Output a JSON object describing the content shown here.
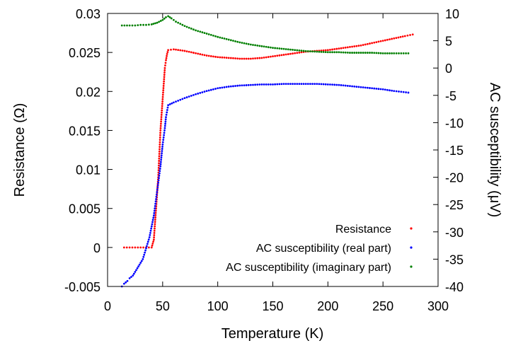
{
  "chart_data": {
    "type": "scatter",
    "xlabel": "Temperature (K)",
    "ylabel": "Resistance (Ω)",
    "y2label": "AC susceptibility (μV)",
    "xlim": [
      0,
      300
    ],
    "ylim": [
      -0.005,
      0.03
    ],
    "y2lim": [
      -40,
      10
    ],
    "xticks": [
      "0",
      "50",
      "100",
      "150",
      "200",
      "250",
      "300"
    ],
    "yticks": [
      "-0.005",
      "0",
      "0.005",
      "0.01",
      "0.015",
      "0.02",
      "0.025",
      "0.03"
    ],
    "y2ticks": [
      "-40",
      "-35",
      "-30",
      "-25",
      "-20",
      "-15",
      "-10",
      "-5",
      "0",
      "5",
      "10"
    ],
    "grid": false,
    "legend_position": "bottom-right",
    "series": [
      {
        "name": "Resistance",
        "axis": "left",
        "color": "#ff0000",
        "points": [
          [
            15,
            0
          ],
          [
            20,
            0
          ],
          [
            25,
            0
          ],
          [
            30,
            0
          ],
          [
            35,
            0
          ],
          [
            40,
            0
          ],
          [
            42,
            0.001
          ],
          [
            43,
            0.003
          ],
          [
            44,
            0.005
          ],
          [
            45,
            0.007
          ],
          [
            46,
            0.009
          ],
          [
            47,
            0.012
          ],
          [
            48,
            0.015
          ],
          [
            49,
            0.017
          ],
          [
            50,
            0.019
          ],
          [
            51,
            0.021
          ],
          [
            52,
            0.023
          ],
          [
            53,
            0.024
          ],
          [
            54,
            0.0248
          ],
          [
            55,
            0.0253
          ],
          [
            60,
            0.0254
          ],
          [
            70,
            0.0252
          ],
          [
            80,
            0.0249
          ],
          [
            90,
            0.0246
          ],
          [
            100,
            0.0244
          ],
          [
            110,
            0.0243
          ],
          [
            120,
            0.0242
          ],
          [
            130,
            0.0242
          ],
          [
            140,
            0.0243
          ],
          [
            150,
            0.0245
          ],
          [
            160,
            0.0247
          ],
          [
            170,
            0.0249
          ],
          [
            180,
            0.0251
          ],
          [
            190,
            0.0252
          ],
          [
            200,
            0.0253
          ],
          [
            210,
            0.0255
          ],
          [
            220,
            0.0257
          ],
          [
            230,
            0.0259
          ],
          [
            240,
            0.0262
          ],
          [
            250,
            0.0265
          ],
          [
            260,
            0.0268
          ],
          [
            270,
            0.0271
          ],
          [
            277,
            0.0273
          ]
        ]
      },
      {
        "name": "AC susceptibility (real part)",
        "axis": "right",
        "color": "#0000ff",
        "points": [
          [
            13,
            -40
          ],
          [
            15,
            -39.5
          ],
          [
            18,
            -39
          ],
          [
            20,
            -38.5
          ],
          [
            23,
            -38
          ],
          [
            26,
            -37
          ],
          [
            29,
            -36
          ],
          [
            32,
            -35
          ],
          [
            35,
            -33
          ],
          [
            38,
            -31
          ],
          [
            40,
            -29
          ],
          [
            42,
            -27
          ],
          [
            44,
            -24
          ],
          [
            46,
            -21
          ],
          [
            48,
            -18
          ],
          [
            50,
            -14
          ],
          [
            52,
            -11
          ],
          [
            53,
            -9
          ],
          [
            55,
            -6.8
          ],
          [
            60,
            -6.3
          ],
          [
            70,
            -5.5
          ],
          [
            80,
            -4.8
          ],
          [
            90,
            -4.2
          ],
          [
            100,
            -3.7
          ],
          [
            110,
            -3.4
          ],
          [
            120,
            -3.2
          ],
          [
            130,
            -3.1
          ],
          [
            140,
            -3.0
          ],
          [
            150,
            -3.0
          ],
          [
            160,
            -2.9
          ],
          [
            170,
            -2.9
          ],
          [
            180,
            -2.9
          ],
          [
            190,
            -2.9
          ],
          [
            200,
            -3.0
          ],
          [
            210,
            -3.1
          ],
          [
            220,
            -3.3
          ],
          [
            230,
            -3.5
          ],
          [
            240,
            -3.7
          ],
          [
            250,
            -3.9
          ],
          [
            260,
            -4.2
          ],
          [
            273,
            -4.5
          ]
        ]
      },
      {
        "name": "AC susceptibility (imaginary part)",
        "axis": "right",
        "color": "#007f00",
        "points": [
          [
            13,
            7.8
          ],
          [
            20,
            7.8
          ],
          [
            25,
            7.8
          ],
          [
            30,
            7.9
          ],
          [
            35,
            7.9
          ],
          [
            40,
            8.0
          ],
          [
            45,
            8.3
          ],
          [
            50,
            8.8
          ],
          [
            53,
            9.3
          ],
          [
            55,
            9.5
          ],
          [
            58,
            9.1
          ],
          [
            62,
            8.5
          ],
          [
            70,
            7.7
          ],
          [
            80,
            6.9
          ],
          [
            90,
            6.3
          ],
          [
            100,
            5.7
          ],
          [
            110,
            5.2
          ],
          [
            120,
            4.7
          ],
          [
            130,
            4.3
          ],
          [
            140,
            4.0
          ],
          [
            150,
            3.7
          ],
          [
            160,
            3.5
          ],
          [
            170,
            3.3
          ],
          [
            180,
            3.1
          ],
          [
            190,
            3.0
          ],
          [
            200,
            2.9
          ],
          [
            210,
            2.9
          ],
          [
            220,
            2.8
          ],
          [
            230,
            2.8
          ],
          [
            240,
            2.8
          ],
          [
            250,
            2.7
          ],
          [
            260,
            2.7
          ],
          [
            273,
            2.7
          ]
        ]
      }
    ]
  }
}
